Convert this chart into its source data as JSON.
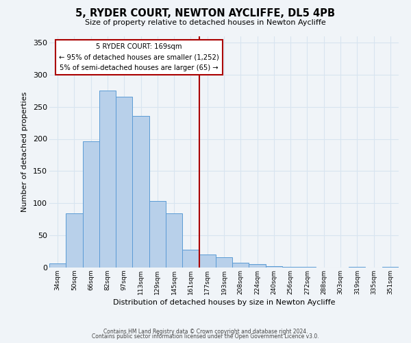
{
  "title": "5, RYDER COURT, NEWTON AYCLIFFE, DL5 4PB",
  "subtitle": "Size of property relative to detached houses in Newton Aycliffe",
  "xlabel": "Distribution of detached houses by size in Newton Aycliffe",
  "ylabel": "Number of detached properties",
  "bar_labels": [
    "34sqm",
    "50sqm",
    "66sqm",
    "82sqm",
    "97sqm",
    "113sqm",
    "129sqm",
    "145sqm",
    "161sqm",
    "177sqm",
    "193sqm",
    "208sqm",
    "224sqm",
    "240sqm",
    "256sqm",
    "272sqm",
    "288sqm",
    "303sqm",
    "319sqm",
    "335sqm",
    "351sqm"
  ],
  "bar_heights": [
    6,
    84,
    196,
    275,
    266,
    236,
    104,
    84,
    28,
    20,
    16,
    7,
    5,
    2,
    1,
    1,
    0,
    0,
    1,
    0,
    1
  ],
  "bar_color": "#b8d0ea",
  "bar_edge_color": "#5b9bd5",
  "vline_x_index": 8.5,
  "vline_color": "#aa0000",
  "annotation_title": "5 RYDER COURT: 169sqm",
  "annotation_line1": "← 95% of detached houses are smaller (1,252)",
  "annotation_line2": "5% of semi-detached houses are larger (65) →",
  "box_edge_color": "#aa0000",
  "ylim": [
    0,
    360
  ],
  "yticks": [
    0,
    50,
    100,
    150,
    200,
    250,
    300,
    350
  ],
  "footer1": "Contains HM Land Registry data © Crown copyright and database right 2024.",
  "footer2": "Contains public sector information licensed under the Open Government Licence v3.0.",
  "background_color": "#f0f4f8",
  "grid_color": "#d8e4f0"
}
